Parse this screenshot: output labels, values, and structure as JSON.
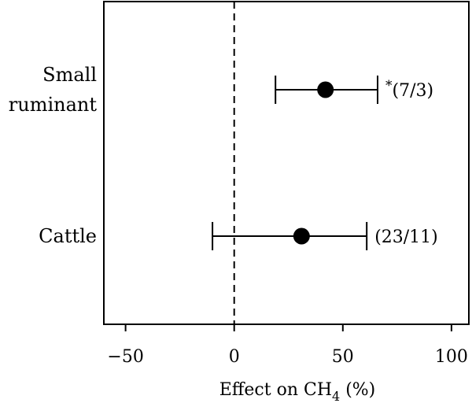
{
  "chart_data": {
    "type": "scatter",
    "subtype": "forest-plot",
    "title": "",
    "xlabel": "Effect on CH",
    "xlabel_subscript": "4",
    "xlabel_suffix": " (%)",
    "xlim": [
      -60,
      108
    ],
    "xticks": [
      -50,
      0,
      50,
      100
    ],
    "xtick_labels": [
      "−50",
      "0",
      "50",
      "100"
    ],
    "reference_line": {
      "x": 0,
      "style": "dashed"
    },
    "grid": false,
    "categories": [
      {
        "label_lines": [
          "Small",
          "ruminant"
        ],
        "estimate": 42,
        "ci_low": 19,
        "ci_high": 66,
        "annotation": "*(7/3)"
      },
      {
        "label_lines": [
          "Cattle"
        ],
        "estimate": 31,
        "ci_low": -10,
        "ci_high": 61,
        "annotation": "(23/11)"
      }
    ]
  }
}
